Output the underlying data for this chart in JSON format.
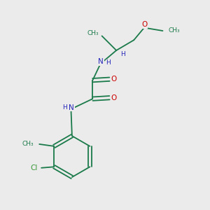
{
  "bg_color": "#ebebeb",
  "atom_colors": {
    "C": "#1a7a4a",
    "N": "#2424bb",
    "O": "#cc0000",
    "Cl": "#3a9a3a",
    "H": "#2424bb"
  },
  "bond_color": "#1a7a4a",
  "figsize": [
    3.0,
    3.0
  ],
  "dpi": 100,
  "xlim": [
    0,
    10
  ],
  "ylim": [
    0,
    10
  ]
}
